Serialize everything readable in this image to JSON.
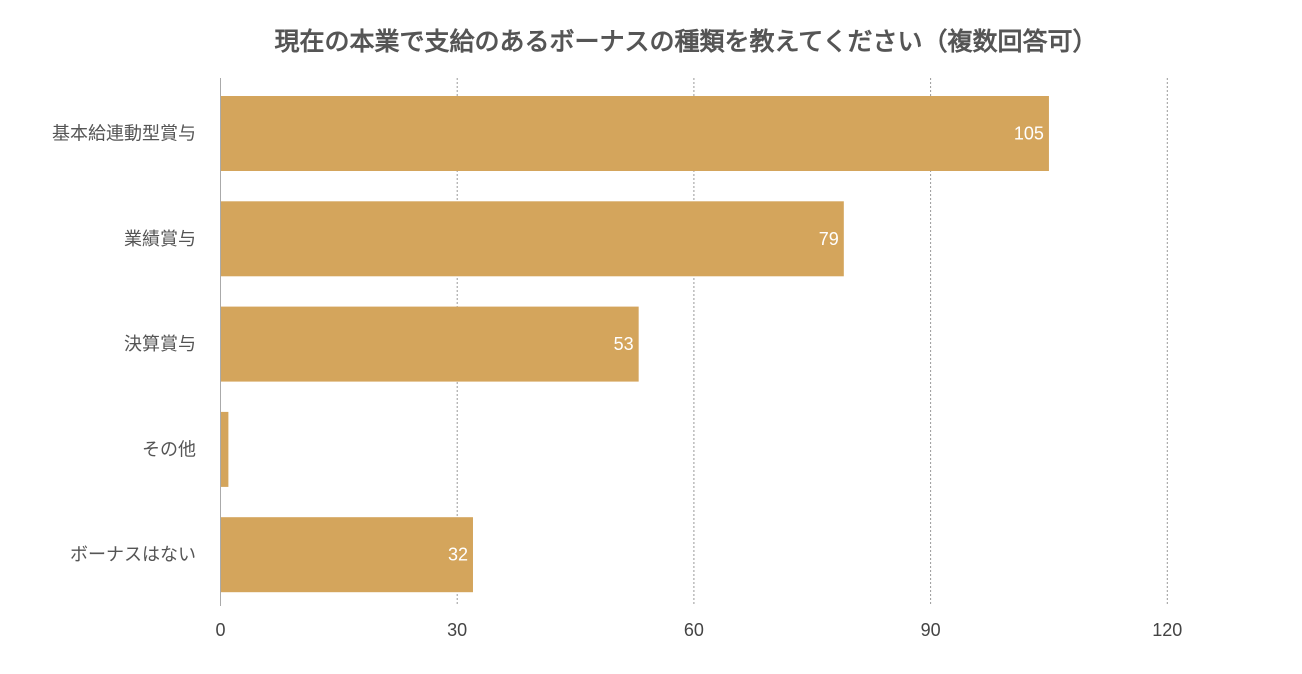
{
  "chart_data": {
    "type": "bar",
    "orientation": "horizontal",
    "title": "現在の本業で支給のあるボーナスの種類を教えてください（複数回答可）",
    "categories": [
      "基本給連動型賞与",
      "業績賞与",
      "決算賞与",
      "その他",
      "ボーナスはない"
    ],
    "values": [
      105,
      79,
      53,
      1,
      32
    ],
    "data_labels": [
      "105",
      "79",
      "53",
      "",
      "32"
    ],
    "xlim": [
      0,
      130
    ],
    "xticks": [
      0,
      30,
      60,
      90,
      120
    ],
    "grid": true,
    "bar_color": "#d4a55c",
    "xlabel": "",
    "ylabel": ""
  }
}
